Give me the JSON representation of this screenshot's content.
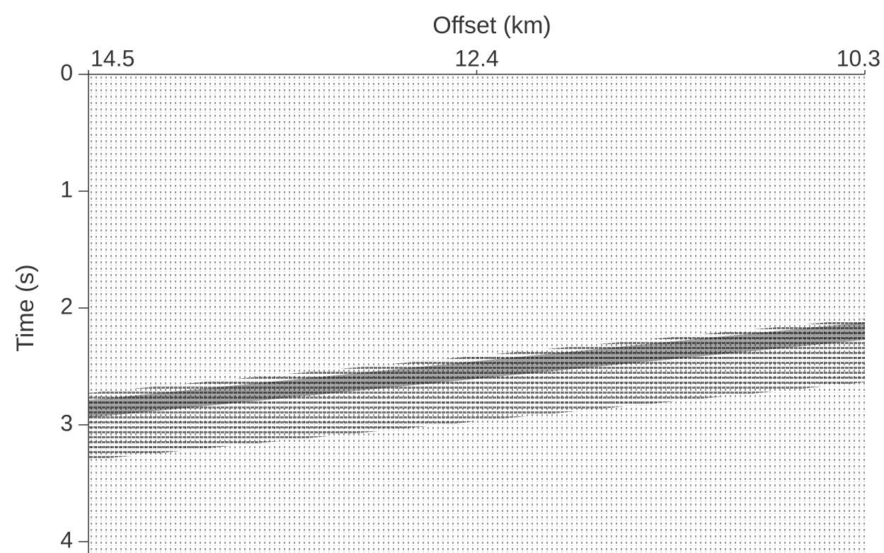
{
  "chart_data": {
    "type": "seismic",
    "xlabel": "Offset (km)",
    "ylabel": "Time (s)",
    "xlim": [
      14.5,
      10.3
    ],
    "xticks": [
      14.5,
      12.4,
      10.3
    ],
    "ylim": [
      4,
      0
    ],
    "yticks": [
      0,
      1,
      2,
      3,
      4
    ],
    "color": "#000000"
  }
}
